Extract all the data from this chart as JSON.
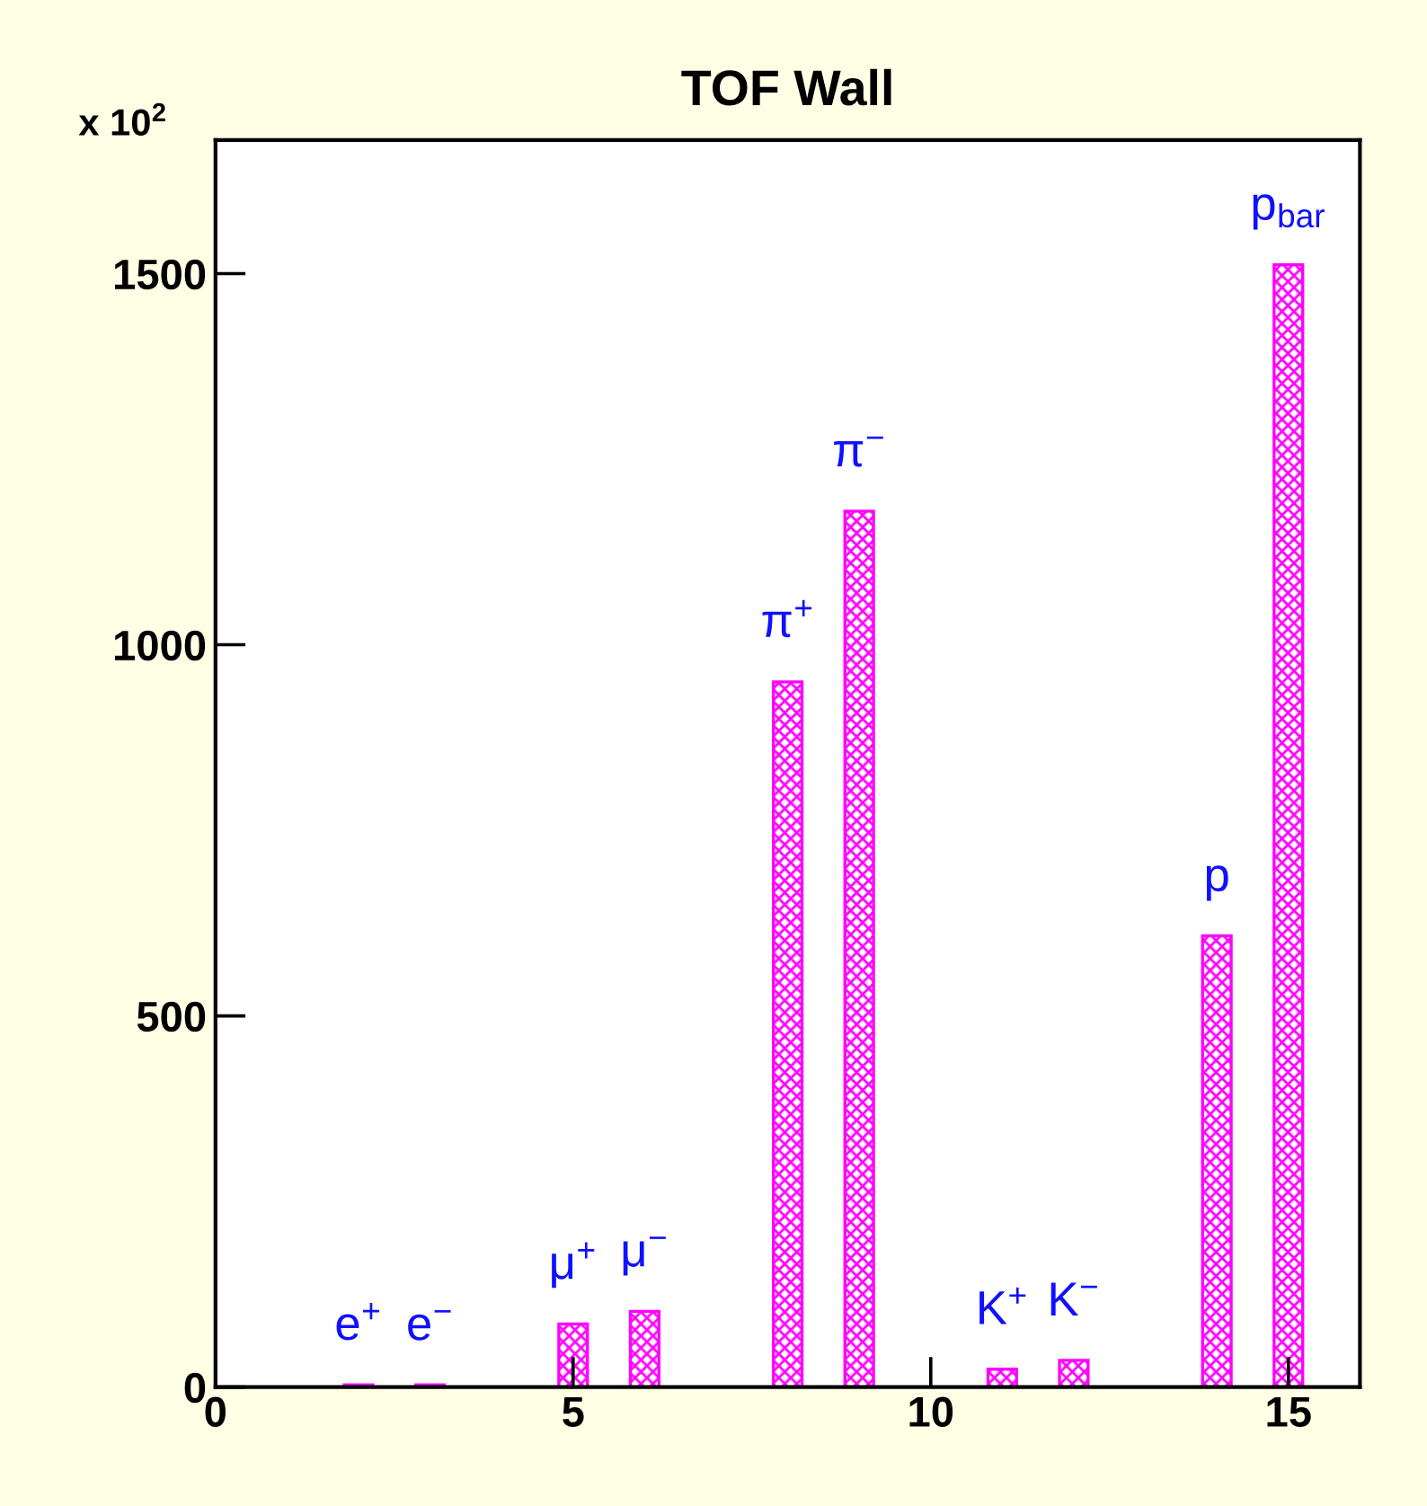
{
  "chart_data": {
    "type": "bar",
    "title": "TOF Wall",
    "x": [
      2,
      3,
      5,
      6,
      8,
      9,
      11,
      12,
      14,
      15
    ],
    "values": [
      3,
      3,
      85,
      102,
      950,
      1180,
      24,
      36,
      608,
      1512
    ],
    "color": "#ff00ff",
    "xlim": [
      0,
      16
    ],
    "xticks": [
      0,
      5,
      10,
      15
    ],
    "ylim": [
      0,
      1680
    ],
    "yticks": [
      0,
      500,
      1000,
      1500
    ],
    "grid": false,
    "legend": false,
    "annotations": [
      "x 10$^{2}$",
      {
        "text": "e$^{+}$",
        "x": 2,
        "y": 3
      },
      {
        "text": "e$^{−}$",
        "x": 3,
        "y": 3
      },
      {
        "text": "μ$^{+}$",
        "x": 5,
        "y": 85
      },
      {
        "text": "μ$^{−}$",
        "x": 6,
        "y": 102
      },
      {
        "text": "π$^{+}$",
        "x": 8,
        "y": 950
      },
      {
        "text": "π$^{−}$",
        "x": 9,
        "y": 1180
      },
      {
        "text": "K$^{+}$",
        "x": 11,
        "y": 24
      },
      {
        "text": "K$^{−}$",
        "x": 12,
        "y": 36
      },
      {
        "text": "p",
        "x": 14,
        "y": 608
      },
      {
        "text": "p$_{bar}$",
        "x": 15,
        "y": 1512
      }
    ]
  }
}
